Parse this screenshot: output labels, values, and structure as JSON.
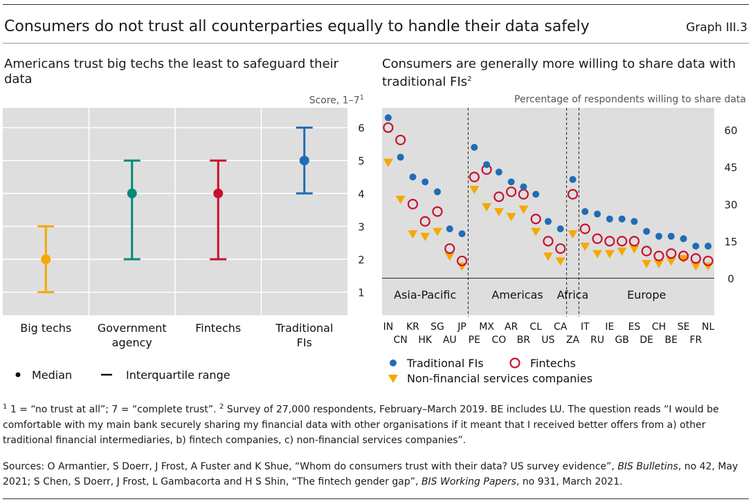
{
  "header": {
    "title": "Consumers do not trust all counterparties equally to handle their data safely",
    "graph_id": "Graph III.3"
  },
  "left_panel": {
    "title": "Americans trust big techs the least to safeguard their data",
    "unit": "Score, 1–7",
    "unit_sup": "1",
    "legend_median": "Median",
    "legend_iqr": "Interquartile range"
  },
  "right_panel": {
    "title": "Consumers are generally more willing to share data with traditional FIs",
    "title_sup": "2",
    "unit": "Percentage of respondents willing to share data",
    "legend_trad": "Traditional FIs",
    "legend_fin": "Fintechs",
    "legend_nfs": "Non-financial services companies"
  },
  "footnotes": {
    "note1_mark": "1",
    "note1": " 1 = “no trust at all”; 7 = “complete trust”. ",
    "note2_mark": "2",
    "note2": " Survey of 27,000 respondents, February–March 2019. BE includes LU. The question reads “I would be comfortable with my main bank securely sharing my financial data with other organisations if it meant that I received better offers from a) other traditional financial intermediaries, b) fintech companies, c) non-financial services companies”.",
    "sources_a": "Sources: O Armantier, S Doerr, J Frost, A Fuster and K Shue, “Whom do consumers trust with their data? US survey evidence”, ",
    "sources_b": "BIS Bulletins",
    "sources_c": ", no 42, May 2021; S Chen, S Doerr, J Frost, L Gambacorta and H S Shin, “The fintech gender gap”, ",
    "sources_d": "BIS Working Papers",
    "sources_e": ", no 931, March 2021."
  },
  "chart_data": [
    {
      "type": "errorbar",
      "categories": [
        "Big techs",
        "Government agency",
        "Fintechs",
        "Traditional FIs"
      ],
      "category_lines": [
        [
          "Big techs"
        ],
        [
          "Government",
          "agency"
        ],
        [
          "Fintechs"
        ],
        [
          "Traditional",
          "FIs"
        ]
      ],
      "median": [
        2,
        4,
        4,
        5
      ],
      "q1": [
        1,
        2,
        2,
        4
      ],
      "q3": [
        3,
        5,
        5,
        6
      ],
      "colors": [
        "#f5a800",
        "#00897b",
        "#c8102e",
        "#1f6db5"
      ],
      "ylim": [
        0.3,
        6.6
      ],
      "yticks": [
        1,
        2,
        3,
        4,
        5,
        6
      ],
      "grid": true,
      "y_axis": "right",
      "legend_placement": "bottom-left"
    },
    {
      "type": "scatter",
      "categories": [
        "IN",
        "CN",
        "KR",
        "HK",
        "SG",
        "AU",
        "JP",
        "PE",
        "MX",
        "CO",
        "AR",
        "BR",
        "CL",
        "US",
        "CA",
        "ZA",
        "IT",
        "RU",
        "IE",
        "GB",
        "ES",
        "DE",
        "CH",
        "BE",
        "SE",
        "FR",
        "NL"
      ],
      "series": [
        {
          "name": "Traditional FIs",
          "marker": "dot",
          "color": "#1f6db5",
          "values": [
            65,
            49,
            41,
            39,
            35,
            20,
            18,
            53,
            46,
            43,
            39,
            37,
            34,
            23,
            20,
            40,
            27,
            26,
            24,
            24,
            23,
            19,
            17,
            17,
            16,
            13,
            13
          ]
        },
        {
          "name": "Fintechs",
          "marker": "ring",
          "color": "#c8102e",
          "values": [
            61,
            56,
            30,
            23,
            27,
            12,
            7,
            41,
            44,
            33,
            35,
            34,
            24,
            15,
            12,
            34,
            20,
            16,
            15,
            15,
            15,
            11,
            9,
            10,
            9,
            8,
            7
          ]
        },
        {
          "name": "Non-financial services companies",
          "marker": "triangle-down",
          "color": "#f5a800",
          "values": [
            47,
            32,
            18,
            17,
            19,
            9,
            5,
            36,
            29,
            27,
            25,
            28,
            19,
            9,
            7,
            18,
            13,
            10,
            10,
            11,
            12,
            6,
            6,
            7,
            8,
            5,
            5
          ]
        }
      ],
      "ylim": [
        -15,
        69
      ],
      "yticks": [
        0,
        15,
        30,
        45,
        60
      ],
      "regions": [
        "Asia-Pacific",
        "Americas",
        "Africa",
        "Europe"
      ],
      "region_breaks_after": [
        "JP",
        "CA",
        "ZA"
      ],
      "zero_line": true,
      "y_axis": "right",
      "legend_placement": "bottom"
    }
  ]
}
